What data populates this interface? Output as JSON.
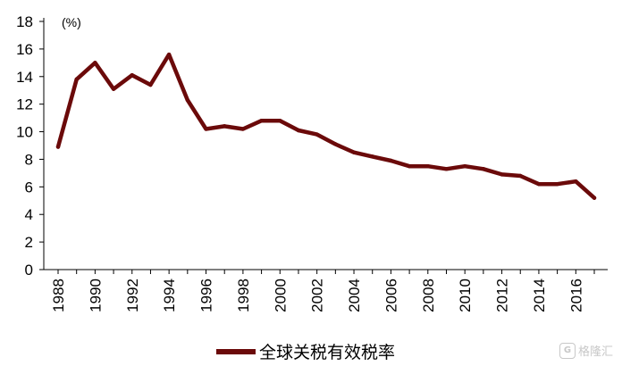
{
  "chart_data": {
    "type": "line",
    "unit_label": "(%)",
    "x": [
      1988,
      1989,
      1990,
      1991,
      1992,
      1993,
      1994,
      1995,
      1996,
      1997,
      1998,
      1999,
      2000,
      2001,
      2002,
      2003,
      2004,
      2005,
      2006,
      2007,
      2008,
      2009,
      2010,
      2011,
      2012,
      2013,
      2014,
      2015,
      2016,
      2017
    ],
    "x_tick_labels": [
      "1988",
      "1990",
      "1992",
      "1994",
      "1996",
      "1998",
      "2000",
      "2002",
      "2004",
      "2006",
      "2008",
      "2010",
      "2012",
      "2014",
      "2016"
    ],
    "y_tick_labels": [
      "0",
      "2",
      "4",
      "6",
      "8",
      "10",
      "12",
      "14",
      "16",
      "18"
    ],
    "ylim": [
      0,
      18
    ],
    "series": [
      {
        "name": "全球关税有效税率",
        "color": "#6b0a0a",
        "values": [
          8.9,
          13.8,
          15.0,
          13.1,
          14.1,
          13.4,
          15.6,
          12.3,
          10.2,
          10.4,
          10.2,
          10.8,
          10.8,
          10.1,
          9.8,
          9.1,
          8.5,
          8.2,
          7.9,
          7.5,
          7.5,
          7.3,
          7.5,
          7.3,
          6.9,
          6.8,
          6.2,
          6.2,
          6.4,
          5.2
        ]
      }
    ],
    "grid": false,
    "legend_position": "bottom-center"
  },
  "watermark": {
    "icon": "G",
    "text": "格隆汇"
  }
}
